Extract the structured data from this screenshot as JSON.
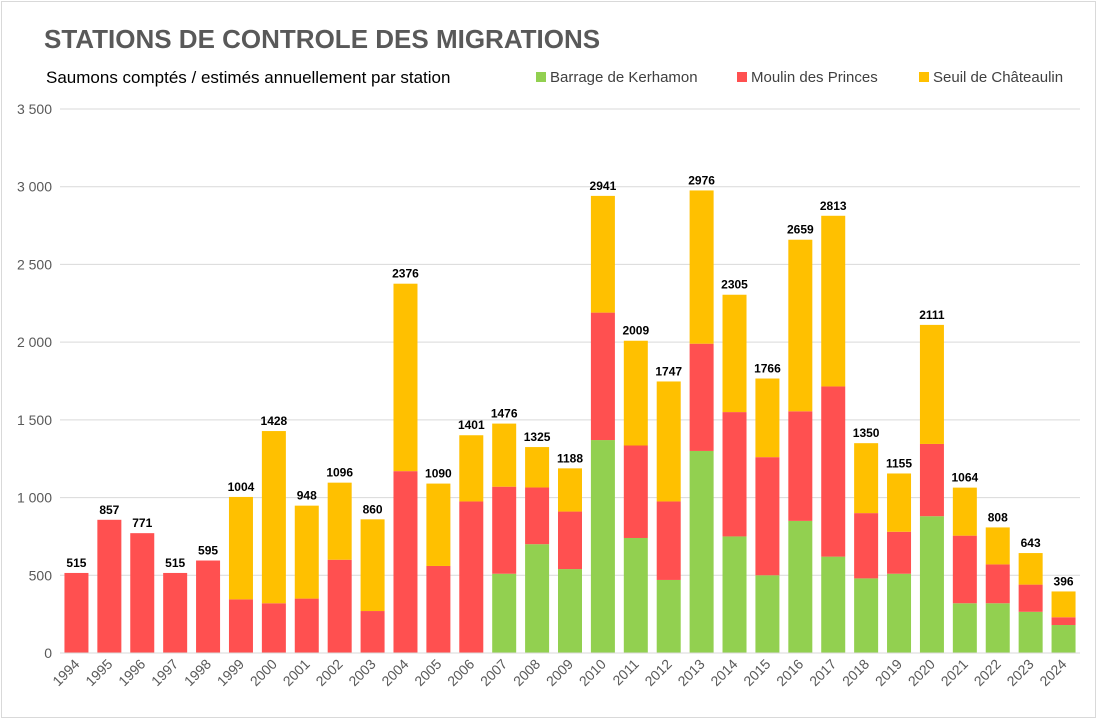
{
  "chart_data": {
    "type": "bar",
    "stacked": true,
    "title": "STATIONS DE CONTROLE DES MIGRATIONS",
    "subtitle": "Saumons comptés / estimés annuellement par station",
    "xlabel": "",
    "ylabel": "",
    "ylim": [
      0,
      3500
    ],
    "yticks": [
      0,
      500,
      1000,
      1500,
      2000,
      2500,
      3000,
      3500
    ],
    "ytick_labels": [
      "0",
      "500",
      "1 000",
      "1 500",
      "2 000",
      "2 500",
      "3 000",
      "3 500"
    ],
    "grid": true,
    "legend_position": "top-right",
    "categories": [
      "1994",
      "1995",
      "1996",
      "1997",
      "1998",
      "1999",
      "2000",
      "2001",
      "2002",
      "2003",
      "2004",
      "2005",
      "2006",
      "2007",
      "2008",
      "2009",
      "2010",
      "2011",
      "2012",
      "2013",
      "2014",
      "2015",
      "2016",
      "2017",
      "2018",
      "2019",
      "2020",
      "2021",
      "2022",
      "2023",
      "2024"
    ],
    "series": [
      {
        "name": "Barrage de Kerhamon",
        "color": "#92d050",
        "values": [
          0,
          0,
          0,
          0,
          0,
          0,
          0,
          0,
          0,
          0,
          0,
          0,
          0,
          510,
          700,
          540,
          1370,
          740,
          470,
          1300,
          750,
          500,
          850,
          620,
          480,
          510,
          880,
          320,
          320,
          265,
          180
        ]
      },
      {
        "name": "Moulin des Princes",
        "color": "#ff5050",
        "values": [
          515,
          857,
          771,
          515,
          595,
          345,
          320,
          350,
          600,
          270,
          1170,
          560,
          975,
          560,
          365,
          370,
          820,
          595,
          505,
          690,
          800,
          760,
          705,
          1095,
          420,
          270,
          465,
          435,
          250,
          175,
          50
        ]
      },
      {
        "name": "Seuil de Châteaulin",
        "color": "#ffc000",
        "values": [
          0,
          0,
          0,
          0,
          0,
          659,
          1108,
          598,
          496,
          590,
          1206,
          530,
          426,
          406,
          260,
          278,
          751,
          674,
          772,
          986,
          755,
          506,
          1104,
          1098,
          450,
          375,
          766,
          309,
          238,
          203,
          166
        ]
      }
    ],
    "totals": [
      "515",
      "857",
      "771",
      "515",
      "595",
      "1004",
      "1428",
      "948",
      "1096",
      "860",
      "2376",
      "1090",
      "1401",
      "1476",
      "1325",
      "1188",
      "2941",
      "2009",
      "1747",
      "2976",
      "2305",
      "1766",
      "2659",
      "2813",
      "1350",
      "1155",
      "2111",
      "1064",
      "808",
      "643",
      "396"
    ]
  }
}
